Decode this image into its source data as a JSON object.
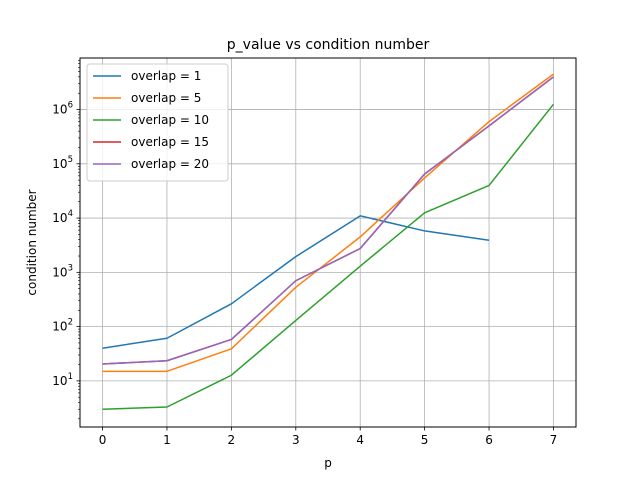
{
  "chart_data": {
    "type": "line",
    "title": "p_value vs condition number",
    "xlabel": "p",
    "ylabel": "condition number",
    "xlim": [
      -0.35,
      7.35
    ],
    "ylim_log10": [
      0.15,
      6.95
    ],
    "yscale": "log",
    "grid": true,
    "legend_position": "top-left",
    "x_ticks": [
      0,
      1,
      2,
      3,
      4,
      5,
      6,
      7
    ],
    "y_ticks": [
      {
        "base": "10",
        "exp": "1",
        "value": 10
      },
      {
        "base": "10",
        "exp": "2",
        "value": 100
      },
      {
        "base": "10",
        "exp": "3",
        "value": 1000
      },
      {
        "base": "10",
        "exp": "4",
        "value": 10000
      },
      {
        "base": "10",
        "exp": "5",
        "value": 100000
      },
      {
        "base": "10",
        "exp": "6",
        "value": 1000000
      }
    ],
    "series": [
      {
        "name": "overlap = 1",
        "color": "#1f77b4",
        "x": [
          0,
          1,
          2,
          3,
          4,
          5,
          6
        ],
        "values": [
          40,
          61,
          263,
          1950,
          11000,
          5800,
          3900
        ]
      },
      {
        "name": "overlap = 5",
        "color": "#ff7f0e",
        "x": [
          0,
          1,
          2,
          3,
          4,
          5,
          6,
          7
        ],
        "values": [
          15,
          15,
          39,
          530,
          4500,
          55000,
          600000,
          4500000
        ]
      },
      {
        "name": "overlap = 10",
        "color": "#2ca02c",
        "x": [
          0,
          1,
          2,
          3,
          4,
          5,
          6,
          7
        ],
        "values": [
          3.0,
          3.3,
          12.7,
          130,
          1300,
          12500,
          40000,
          1250000
        ]
      },
      {
        "name": "overlap = 15",
        "color": "#d62728",
        "x": [
          0,
          1,
          2,
          3,
          4,
          5,
          6,
          7
        ],
        "values": [
          20.5,
          23.5,
          58,
          700,
          2750,
          65000,
          500000,
          4000000
        ]
      },
      {
        "name": "overlap = 20",
        "color": "#9467bd",
        "x": [
          0,
          1,
          2,
          3,
          4,
          5,
          6,
          7
        ],
        "values": [
          20.5,
          23.5,
          58,
          700,
          2750,
          65000,
          500000,
          4000000
        ]
      }
    ]
  }
}
